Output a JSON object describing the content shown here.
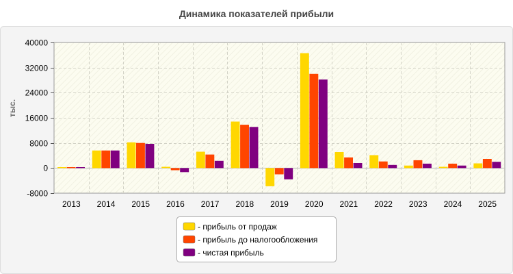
{
  "chart_data": {
    "type": "bar",
    "title": "Динамика показателей прибыли",
    "xlabel": "",
    "ylabel": "тыс.",
    "ylim": [
      -8000,
      40000
    ],
    "yticks": [
      -8000,
      0,
      8000,
      16000,
      24000,
      32000,
      40000
    ],
    "grid": true,
    "legend_position": "bottom-center",
    "categories": [
      "2013",
      "2014",
      "2015",
      "2016",
      "2017",
      "2018",
      "2019",
      "2020",
      "2021",
      "2022",
      "2023",
      "2024",
      "2025"
    ],
    "series": [
      {
        "name": "- прибыль от продаж",
        "color": "#FFD700",
        "values": [
          300,
          5600,
          8200,
          400,
          5200,
          14800,
          -5800,
          36600,
          5100,
          4100,
          800,
          400,
          1500
        ]
      },
      {
        "name": "- прибыль до налогообложения",
        "color": "#FF4500",
        "values": [
          300,
          5600,
          8000,
          -700,
          4300,
          13800,
          -2000,
          30000,
          3400,
          2100,
          2500,
          1400,
          2900
        ]
      },
      {
        "name": "- чистая прибыль",
        "color": "#800080",
        "values": [
          300,
          5600,
          7700,
          -1300,
          2300,
          13100,
          -3600,
          28200,
          1600,
          1000,
          1400,
          800,
          2000
        ]
      }
    ]
  }
}
